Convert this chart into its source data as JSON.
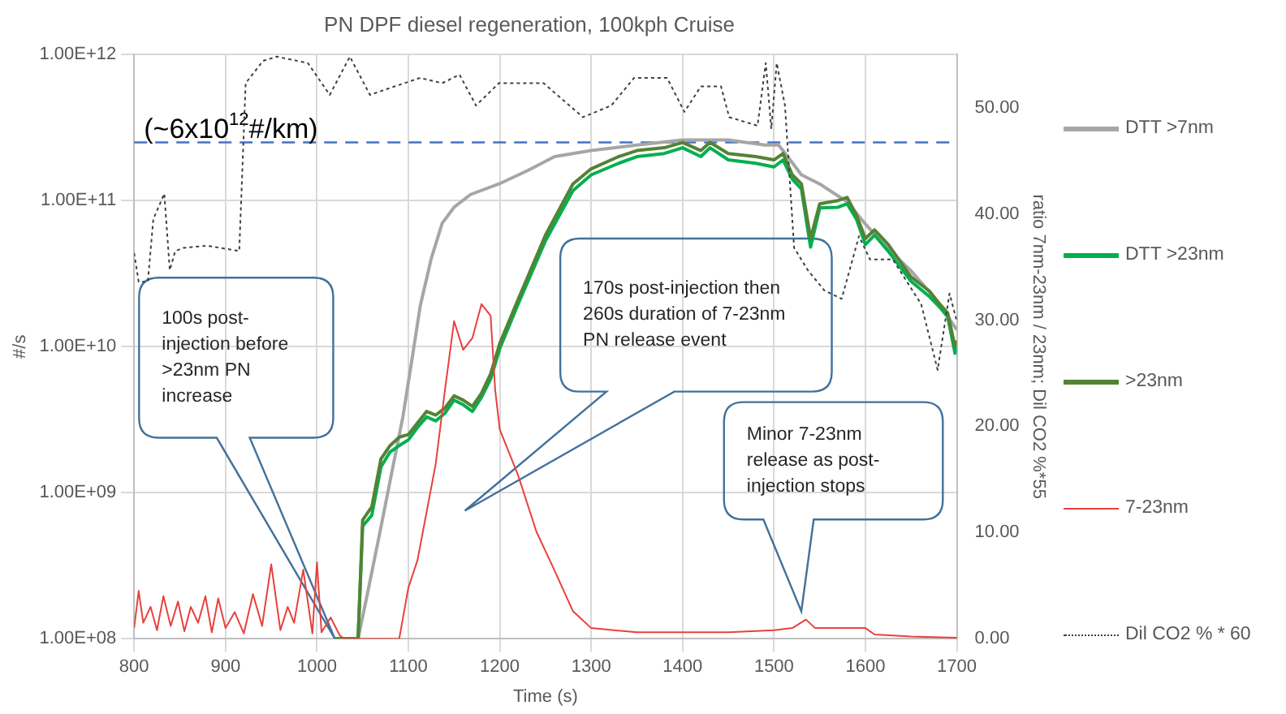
{
  "chart_data": {
    "type": "line",
    "title": "PN DPF diesel regeneration, 100kph Cruise",
    "xlabel": "Time (s)",
    "ylabel": "#/s",
    "y2label": "ratio 7nm-23nm / 23nm; Dil CO2 %*55",
    "xlim": [
      800,
      1700
    ],
    "xticks": [
      800,
      900,
      1000,
      1100,
      1200,
      1300,
      1400,
      1500,
      1600,
      1700
    ],
    "ylim": [
      100000000,
      1000000000000
    ],
    "yticks": [
      {
        "value": 100000000,
        "label": "1.00E+08"
      },
      {
        "value": 1000000000,
        "label": "1.00E+09"
      },
      {
        "value": 10000000000,
        "label": "1.00E+10"
      },
      {
        "value": 100000000000,
        "label": "1.00E+11"
      },
      {
        "value": 1000000000000,
        "label": "1.00E+12"
      }
    ],
    "y2lim": [
      0,
      55
    ],
    "y2ticks": [
      {
        "value": 0,
        "label": "0.00"
      },
      {
        "value": 10,
        "label": "10.00"
      },
      {
        "value": 20,
        "label": "20.00"
      },
      {
        "value": 30,
        "label": "30.00"
      },
      {
        "value": 40,
        "label": "40.00"
      },
      {
        "value": 50,
        "label": "50.00"
      }
    ],
    "log": "y",
    "grid": true,
    "legend": "right",
    "series": [
      {
        "name": "DTT >7nm",
        "color": "#a6a6a6",
        "x": [
          1045,
          1055,
          1069,
          1080,
          1094,
          1105,
          1113,
          1125,
          1137,
          1150,
          1168,
          1199,
          1230,
          1260,
          1300,
          1350,
          1400,
          1450,
          1490,
          1505,
          1515,
          1530,
          1550,
          1580,
          1600,
          1620,
          1650,
          1680,
          1700
        ],
        "values": [
          100000000.0,
          200000000.0,
          540000000.0,
          1200000000.0,
          3300000000.0,
          9000000000.0,
          19000000000.0,
          40000000000.0,
          70000000000.0,
          90000000000.0,
          110000000000.0,
          130000000000.0,
          160000000000.0,
          200000000000.0,
          220000000000.0,
          240000000000.0,
          260000000000.0,
          260000000000.0,
          240000000000.0,
          240000000000.0,
          200000000000.0,
          150000000000.0,
          130000000000.0,
          98000000000.0,
          69000000000.0,
          50000000000.0,
          33000000000.0,
          20000000000.0,
          13000000000.0
        ]
      },
      {
        "name": "DTT >23nm",
        "color": "#00b050",
        "x": [
          1020,
          1045,
          1050,
          1060,
          1070,
          1080,
          1090,
          1100,
          1110,
          1120,
          1130,
          1140,
          1150,
          1160,
          1170,
          1180,
          1190,
          1200,
          1220,
          1250,
          1280,
          1300,
          1330,
          1350,
          1380,
          1400,
          1420,
          1430,
          1450,
          1480,
          1500,
          1510,
          1520,
          1530,
          1540,
          1550,
          1570,
          1580,
          1590,
          1600,
          1610,
          1625,
          1650,
          1670,
          1680,
          1690,
          1698,
          1700
        ],
        "values": [
          100000000.0,
          100000000.0,
          590000000.0,
          700000000.0,
          1500000000.0,
          1900000000.0,
          2100000000.0,
          2300000000.0,
          2800000000.0,
          3300000000.0,
          3100000000.0,
          3500000000.0,
          4300000000.0,
          4000000000.0,
          3600000000.0,
          4500000000.0,
          6000000000.0,
          9700000000.0,
          19500000000.0,
          53000000000.0,
          117000000000.0,
          150000000000.0,
          180000000000.0,
          200000000000.0,
          210000000000.0,
          230000000000.0,
          200000000000.0,
          230000000000.0,
          190000000000.0,
          180000000000.0,
          170000000000.0,
          190000000000.0,
          140000000000.0,
          120000000000.0,
          48000000000.0,
          89000000000.0,
          90000000000.0,
          95000000000.0,
          75000000000.0,
          50000000000.0,
          58000000000.0,
          45000000000.0,
          28000000000.0,
          22000000000.0,
          19000000000.0,
          16000000000.0,
          9000000000.0,
          10000000000.0
        ]
      },
      {
        "name": ">23nm",
        "color": "#548235",
        "x": [
          1020,
          1045,
          1050,
          1060,
          1070,
          1080,
          1090,
          1100,
          1110,
          1120,
          1130,
          1140,
          1150,
          1160,
          1170,
          1180,
          1190,
          1200,
          1220,
          1250,
          1280,
          1300,
          1330,
          1350,
          1380,
          1400,
          1420,
          1430,
          1450,
          1480,
          1500,
          1510,
          1520,
          1530,
          1540,
          1550,
          1570,
          1580,
          1590,
          1600,
          1610,
          1625,
          1650,
          1670,
          1680,
          1690,
          1698,
          1700
        ],
        "values": [
          100000000.0,
          100000000.0,
          650000000.0,
          800000000.0,
          1700000000.0,
          2100000000.0,
          2400000000.0,
          2500000000.0,
          3000000000.0,
          3600000000.0,
          3400000000.0,
          3800000000.0,
          4600000000.0,
          4300000000.0,
          3900000000.0,
          4800000000.0,
          6500000000.0,
          10500000000.0,
          21000000000.0,
          58000000000.0,
          130000000000.0,
          165000000000.0,
          200000000000.0,
          220000000000.0,
          230000000000.0,
          250000000000.0,
          220000000000.0,
          250000000000.0,
          210000000000.0,
          200000000000.0,
          190000000000.0,
          210000000000.0,
          150000000000.0,
          130000000000.0,
          55000000000.0,
          95000000000.0,
          100000000000.0,
          105000000000.0,
          80000000000.0,
          55000000000.0,
          63000000000.0,
          50000000000.0,
          30000000000.0,
          24000000000.0,
          20000000000.0,
          17000000000.0,
          10000000000.0,
          11000000000.0
        ]
      },
      {
        "name": "7-23nm",
        "color": "#e8413c",
        "axis": "y2",
        "x": [
          800,
          805,
          810,
          818,
          825,
          832,
          840,
          848,
          855,
          862,
          870,
          878,
          885,
          892,
          900,
          910,
          920,
          930,
          940,
          950,
          960,
          968,
          975,
          985,
          995,
          1000,
          1005,
          1015,
          1025,
          1030,
          1090,
          1100,
          1110,
          1130,
          1140,
          1150,
          1160,
          1170,
          1180,
          1190,
          1195,
          1200,
          1220,
          1240,
          1260,
          1280,
          1300,
          1350,
          1400,
          1450,
          1500,
          1520,
          1535,
          1545,
          1600,
          1610,
          1650,
          1700
        ],
        "values": [
          1,
          4.5,
          1.5,
          3,
          0.8,
          4,
          1.2,
          3.5,
          0.7,
          3,
          1.5,
          4,
          0.6,
          3.8,
          1,
          2.5,
          0.5,
          4.2,
          1.2,
          7,
          0.8,
          3,
          1.5,
          6.5,
          0.5,
          7.2,
          0.6,
          2,
          0.3,
          0,
          0,
          4.8,
          7.4,
          16.5,
          23.4,
          29.9,
          27.2,
          28.3,
          31.5,
          30.4,
          23.4,
          19.7,
          15.4,
          10.1,
          6.4,
          2.6,
          1,
          0.6,
          0.6,
          0.6,
          0.8,
          1,
          1.8,
          1,
          1,
          0.4,
          0.2,
          0.1
        ]
      },
      {
        "name": "Dil CO2 % * 60",
        "color": "#404040",
        "axis": "y2",
        "line_style": "dotted",
        "x": [
          800,
          805,
          815,
          821,
          833,
          839,
          845,
          854,
          880,
          915,
          922,
          941,
          956,
          990,
          1014,
          1036,
          1058,
          1085,
          1113,
          1137,
          1156,
          1174,
          1199,
          1248,
          1291,
          1322,
          1347,
          1383,
          1402,
          1420,
          1442,
          1451,
          1482,
          1491,
          1497,
          1503,
          1512,
          1522,
          1537,
          1555,
          1574,
          1593,
          1605,
          1630,
          1661,
          1679,
          1692,
          1700
        ],
        "values": [
          36.3,
          33.6,
          33.6,
          39.5,
          41.9,
          34.7,
          36.5,
          36.8,
          37,
          36.5,
          52.3,
          54.4,
          54.8,
          54.2,
          51.2,
          54.8,
          51.2,
          52,
          52.8,
          52.3,
          53.1,
          50.2,
          52.3,
          52.3,
          49.1,
          50.2,
          52.8,
          52.8,
          49.6,
          52,
          52,
          49.1,
          48.3,
          54.2,
          48,
          54.2,
          50.2,
          36.8,
          34.7,
          32.8,
          32,
          37.9,
          35.7,
          35.7,
          31.5,
          25.3,
          32.5,
          29.9
        ]
      }
    ],
    "ref_lines": [
      {
        "axis": "y",
        "value": 250000000000,
        "label": "(~6x10$^{12}$#/km)",
        "color": "#4472c4",
        "line_style": "dashed"
      }
    ],
    "annotations": [
      "100s post-injection before >23nm PN increase",
      "170s post-injection then 260s duration of 7-23nm PN release event",
      "Minor 7-23nm release as post-injection stops"
    ]
  }
}
